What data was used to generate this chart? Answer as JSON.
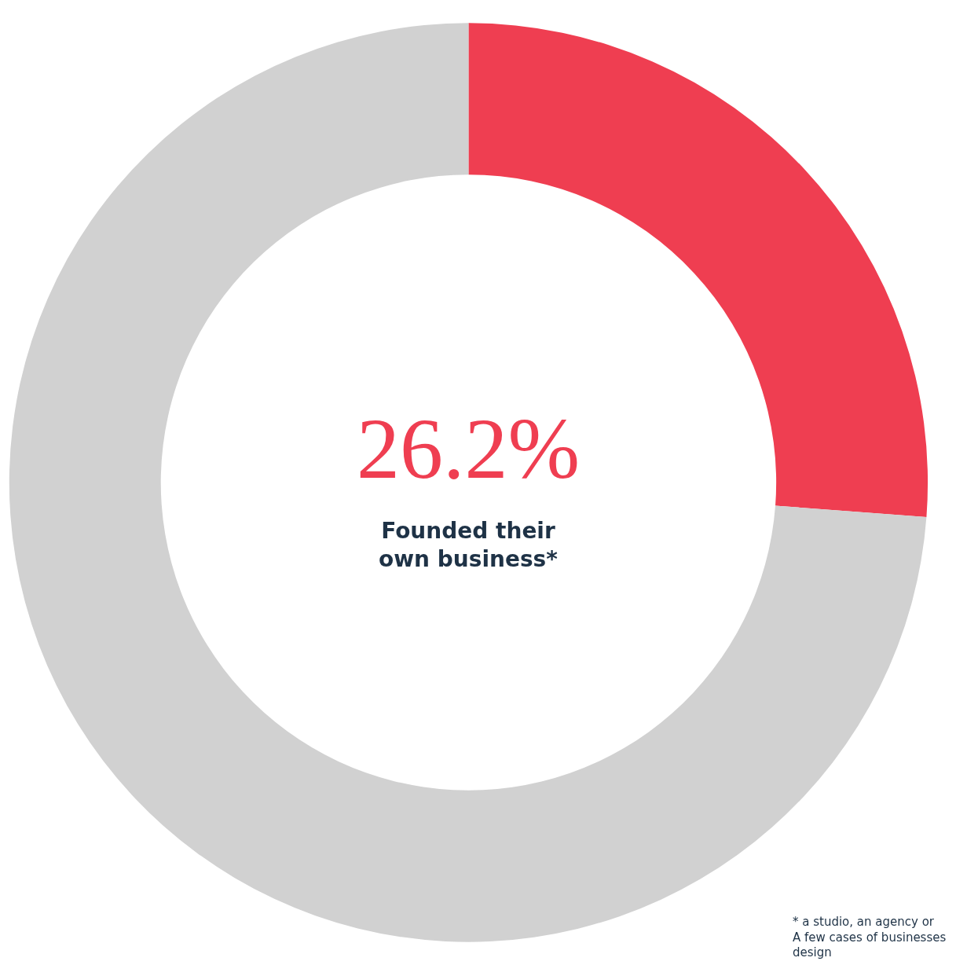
{
  "chart_data": {
    "type": "donut",
    "categories": [
      null,
      null
    ],
    "values": [
      26.2,
      73.8
    ],
    "colors": [
      "#ef3e51",
      "#d1d1d1"
    ],
    "value_labels": [
      "26.2%",
      null
    ],
    "annotations": [
      "Founded their\nown business*",
      "* a studio, an agency or\nA few cases of businesses\ndesign"
    ],
    "legend": false
  }
}
